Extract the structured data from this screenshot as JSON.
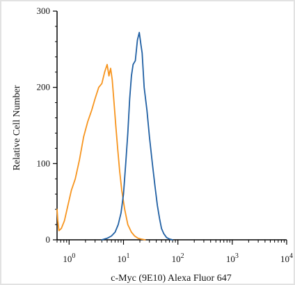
{
  "chart_data": {
    "type": "line",
    "xlabel": "c-Myc (9E10) Alexa Fluor 647",
    "ylabel": "Relative Cell Number",
    "x_scale": "log",
    "xlim": [
      0.6,
      10000
    ],
    "ylim": [
      0,
      300
    ],
    "x_ticks": [
      {
        "value": 1,
        "base": "10",
        "exp": "0"
      },
      {
        "value": 10,
        "base": "10",
        "exp": "1"
      },
      {
        "value": 100,
        "base": "10",
        "exp": "2"
      },
      {
        "value": 1000,
        "base": "10",
        "exp": "3"
      },
      {
        "value": 10000,
        "base": "10",
        "exp": "4"
      }
    ],
    "y_ticks": [
      {
        "value": 0,
        "label": "0"
      },
      {
        "value": 100,
        "label": "100"
      },
      {
        "value": 200,
        "label": "200"
      },
      {
        "value": 300,
        "label": "300"
      }
    ],
    "series": [
      {
        "color": "#f7941d",
        "x": [
          0.6,
          0.62,
          0.65,
          0.72,
          0.82,
          0.95,
          1.1,
          1.3,
          1.55,
          1.85,
          2.2,
          2.6,
          3.0,
          3.5,
          4.0,
          4.5,
          5.0,
          5.4,
          5.8,
          6.2,
          6.7,
          7.2,
          7.8,
          8.5,
          9.3,
          10.5,
          12.0,
          14.0,
          16.0,
          18.5,
          21.0,
          25.0
        ],
        "y": [
          40,
          25,
          12,
          15,
          25,
          45,
          65,
          80,
          105,
          135,
          155,
          170,
          185,
          200,
          205,
          220,
          230,
          215,
          225,
          210,
          180,
          150,
          120,
          90,
          65,
          40,
          20,
          10,
          5,
          2,
          1,
          0
        ]
      },
      {
        "color": "#1f5fa3",
        "x": [
          4.0,
          5.0,
          6.0,
          7.0,
          8.0,
          9.0,
          10.0,
          11.0,
          12.0,
          13.0,
          14.0,
          15.0,
          16.5,
          18.0,
          19.5,
          21.0,
          22.0,
          24.0,
          27.0,
          30.0,
          34.0,
          38.0,
          42.0,
          46.0,
          50.0,
          55.0,
          62.0,
          70.0,
          80.0
        ],
        "y": [
          0,
          2,
          5,
          10,
          20,
          35,
          60,
          100,
          140,
          185,
          215,
          230,
          235,
          262,
          272,
          255,
          245,
          200,
          170,
          135,
          100,
          70,
          45,
          28,
          15,
          8,
          3,
          1,
          0
        ]
      }
    ]
  }
}
